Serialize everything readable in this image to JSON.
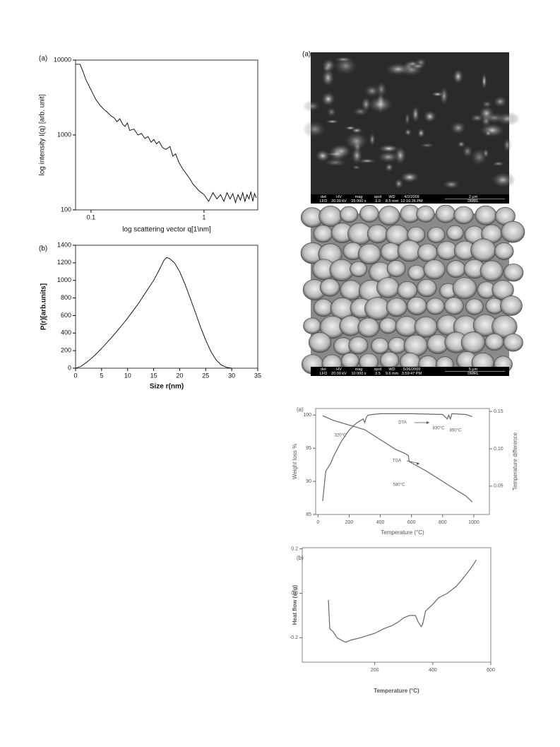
{
  "chart_data": [
    {
      "type": "line",
      "panel": "(a)",
      "xlabel": "log scattering vector q[1\\nm]",
      "ylabel": "log intensity I(q) [arb. unit]",
      "xscale": "log",
      "yscale": "log",
      "xlim": [
        0.073,
        2.99
      ],
      "ylim": [
        100,
        10000
      ],
      "xticks": [
        0.1,
        1
      ],
      "yticks": [
        100,
        1000,
        10000
      ],
      "series": [
        {
          "color": "#000000",
          "x": [
            0.073,
            0.08,
            0.085,
            0.09,
            0.1,
            0.11,
            0.12,
            0.13,
            0.14,
            0.15,
            0.16,
            0.17,
            0.18,
            0.19,
            0.2,
            0.21,
            0.22,
            0.24,
            0.26,
            0.28,
            0.3,
            0.32,
            0.34,
            0.36,
            0.38,
            0.4,
            0.43,
            0.46,
            0.5,
            0.53,
            0.56,
            0.6,
            0.65,
            0.7,
            0.75,
            0.8,
            0.85,
            0.9,
            1.0,
            1.1,
            1.2,
            1.3,
            1.4,
            1.5,
            1.6,
            1.7,
            1.8,
            1.9,
            2.0,
            2.1,
            2.2,
            2.3,
            2.4,
            2.5,
            2.6,
            2.7,
            2.8,
            2.9
          ],
          "values": [
            8800,
            8800,
            7000,
            5500,
            4000,
            3000,
            2500,
            2200,
            2000,
            1800,
            1700,
            1500,
            1650,
            1400,
            1300,
            1450,
            1150,
            1200,
            1000,
            1050,
            900,
            950,
            800,
            870,
            760,
            820,
            680,
            640,
            700,
            520,
            560,
            430,
            350,
            300,
            260,
            220,
            200,
            180,
            160,
            130,
            170,
            140,
            160,
            130,
            170,
            140,
            165,
            125,
            160,
            135,
            170,
            130,
            160,
            140,
            175,
            130,
            165,
            145
          ]
        }
      ]
    },
    {
      "type": "line",
      "panel": "(b)",
      "xlabel": "Size r(nm)",
      "ylabel": "P(r)[arb.units]",
      "xlim": [
        0,
        35
      ],
      "ylim": [
        0,
        1400
      ],
      "xticks": [
        0,
        5,
        10,
        15,
        20,
        25,
        30,
        35
      ],
      "yticks": [
        0,
        200,
        400,
        600,
        800,
        1000,
        1200,
        1400
      ],
      "series": [
        {
          "color": "#000000",
          "x": [
            0,
            1,
            2,
            3,
            4,
            5,
            6,
            7,
            8,
            9,
            10,
            11,
            12,
            13,
            14,
            15,
            16,
            17,
            17.5,
            18,
            19,
            20,
            21,
            22,
            23,
            24,
            25,
            26,
            27,
            28,
            29,
            30
          ],
          "values": [
            0,
            20,
            60,
            110,
            165,
            225,
            290,
            355,
            425,
            495,
            570,
            650,
            730,
            820,
            910,
            1000,
            1110,
            1230,
            1260,
            1250,
            1200,
            1100,
            960,
            800,
            640,
            470,
            320,
            190,
            95,
            35,
            10,
            0
          ]
        }
      ]
    },
    {
      "type": "line",
      "panel": "(a)",
      "xlabel": "Temperature (°C)",
      "ylabel": "Weight loss %",
      "y2label": "Temperature difference",
      "xlim": [
        -15,
        1100
      ],
      "ylim": [
        85,
        101
      ],
      "y2lim": [
        0.012,
        0.154
      ],
      "xticks": [
        0,
        200,
        400,
        600,
        800,
        1000
      ],
      "yticks": [
        85,
        90,
        95,
        100
      ],
      "y2ticks": [
        0.05,
        {
          "value": 0.1,
          "label": "0.10"
        },
        0.15
      ],
      "annotations": [
        "DTA",
        "320°C",
        "830°C",
        "850°C",
        "TGA",
        "580°C"
      ],
      "series": [
        {
          "color": "#666666",
          "x": [
            30,
            100,
            200,
            300,
            400,
            500,
            560,
            580,
            585,
            600,
            700,
            800,
            900,
            950,
            990
          ],
          "values": [
            99.9,
            99.2,
            98.5,
            97.8,
            96.3,
            94.8,
            94.2,
            93.9,
            93.0,
            92.8,
            91.5,
            90,
            88.5,
            87.8,
            86.9
          ]
        },
        {
          "color": "#666666",
          "axis": "y2",
          "x": [
            30,
            50,
            80,
            100,
            150,
            200,
            250,
            290,
            300,
            310,
            320,
            350,
            400,
            600,
            800,
            830,
            840,
            850,
            860,
            950,
            990
          ],
          "values": [
            0.03,
            0.07,
            0.08,
            0.09,
            0.11,
            0.125,
            0.135,
            0.14,
            0.135,
            0.142,
            0.145,
            0.146,
            0.147,
            0.147,
            0.146,
            0.14,
            0.145,
            0.14,
            0.147,
            0.146,
            0.143
          ]
        }
      ]
    },
    {
      "type": "line",
      "panel": "(b)",
      "xlabel": "Temperature (°C)",
      "ylabel": "Heat flow (w/g)",
      "xlim": [
        -50,
        600
      ],
      "ylim": [
        -0.31,
        0.205
      ],
      "xticks": [
        200,
        400,
        600
      ],
      "yticks": [
        -0.2,
        {
          "value": 0,
          "label": "0.0"
        },
        0.2
      ],
      "series": [
        {
          "color": "#666666",
          "x": [
            40,
            45,
            55,
            70,
            90,
            100,
            120,
            150,
            200,
            230,
            260,
            280,
            300,
            320,
            340,
            350,
            360,
            365,
            375,
            400,
            420,
            450,
            480,
            500,
            530,
            550
          ],
          "values": [
            -0.03,
            -0.16,
            -0.17,
            -0.2,
            -0.215,
            -0.22,
            -0.21,
            -0.2,
            -0.18,
            -0.16,
            -0.145,
            -0.13,
            -0.11,
            -0.1,
            -0.1,
            -0.13,
            -0.15,
            -0.14,
            -0.08,
            -0.05,
            -0.02,
            0,
            0.03,
            0.06,
            0.11,
            0.15
          ]
        }
      ]
    }
  ],
  "images": [
    {
      "panel": "(a)",
      "info_top": [
        "det",
        "HV",
        "mag",
        "spot",
        "WD",
        "4/2/2009",
        "2 µm"
      ],
      "info_bottom": [
        "LFD",
        "20.00 kV",
        "25 000 x",
        "3.0",
        "8.5 mm",
        "12:16:26 PM",
        "DMRL"
      ]
    },
    {
      "panel": "(b)",
      "info_top": [
        "det",
        "HV",
        "mag",
        "spot",
        "WD",
        "5/26/2009",
        "5 µm"
      ],
      "info_bottom": [
        "LFD",
        "20.00 kV",
        "10 000 x",
        "3.5",
        "9.6 mm",
        "3:59:47 PM",
        "DMRL"
      ]
    }
  ]
}
